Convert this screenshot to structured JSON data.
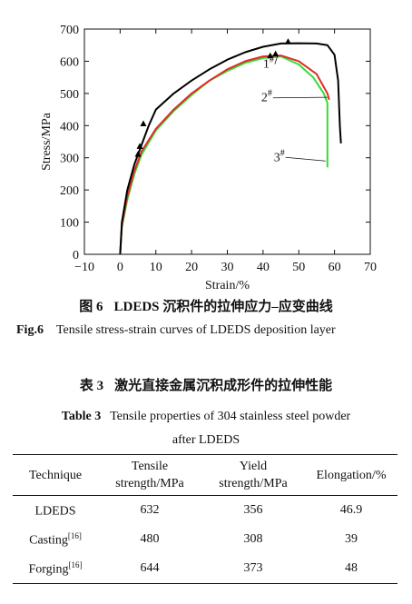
{
  "figure": {
    "caption_cn_number": "图 6",
    "caption_cn_text": "LDEDS 沉积件的拉伸应力–应变曲线",
    "caption_en_number": "Fig.6",
    "caption_en_text": "Tensile stress-strain curves of LDEDS deposition layer"
  },
  "chart_data": {
    "type": "line",
    "xlabel": "Strain/%",
    "ylabel": "Stress/MPa",
    "xlim": [
      -10,
      70
    ],
    "ylim": [
      0,
      700
    ],
    "xticks": [
      -10,
      0,
      10,
      20,
      30,
      40,
      50,
      60,
      70
    ],
    "yticks": [
      0,
      100,
      200,
      300,
      400,
      500,
      600,
      700
    ],
    "xtick_labels": [
      "−10",
      "0",
      "10",
      "20",
      "30",
      "40",
      "50",
      "60",
      "70"
    ],
    "series": [
      {
        "name": "1#",
        "color": "#000000",
        "x": [
          0,
          0.5,
          2,
          4,
          6,
          8,
          10,
          15,
          20,
          25,
          30,
          35,
          40,
          45,
          50,
          55,
          58,
          60,
          61,
          61.5,
          61.8
        ],
        "y": [
          0,
          100,
          200,
          280,
          340,
          400,
          450,
          500,
          540,
          575,
          605,
          628,
          645,
          655,
          656,
          655,
          650,
          620,
          540,
          400,
          345
        ]
      },
      {
        "name": "2#",
        "color": "#e32a2a",
        "x": [
          0,
          0.5,
          2,
          4,
          6,
          10,
          15,
          20,
          25,
          30,
          35,
          40,
          45,
          50,
          55,
          58,
          58.5
        ],
        "y": [
          0,
          90,
          180,
          260,
          320,
          390,
          450,
          500,
          540,
          575,
          600,
          615,
          618,
          600,
          560,
          500,
          480
        ]
      },
      {
        "name": "3#",
        "color": "#33dd33",
        "x": [
          0,
          0.5,
          2,
          4,
          6,
          10,
          15,
          20,
          25,
          30,
          35,
          40,
          45,
          50,
          54,
          57,
          58,
          58,
          58
        ],
        "y": [
          0,
          85,
          170,
          250,
          310,
          385,
          445,
          495,
          540,
          570,
          595,
          610,
          615,
          590,
          550,
          500,
          470,
          350,
          270
        ]
      }
    ],
    "markers": [
      {
        "x": 5,
        "y": 310
      },
      {
        "x": 5.5,
        "y": 335
      },
      {
        "x": 6.5,
        "y": 405
      },
      {
        "x": 42,
        "y": 616
      },
      {
        "x": 43.5,
        "y": 622
      },
      {
        "x": 47,
        "y": 660
      }
    ],
    "annotations": [
      {
        "label": "1",
        "sup": "#",
        "x": 40,
        "y": 580,
        "line_to": [
          44,
          615
        ]
      },
      {
        "label": "2",
        "sup": "#",
        "x": 39.5,
        "y": 475,
        "line_to": [
          58,
          488
        ]
      },
      {
        "label": "3",
        "sup": "#",
        "x": 43,
        "y": 290,
        "line_to": [
          57.5,
          290
        ]
      }
    ]
  },
  "table": {
    "title_cn_number": "表 3",
    "title_cn_text": "激光直接金属沉积成形件的拉伸性能",
    "title_en_number": "Table 3",
    "title_en_line1": "Tensile properties of 304 stainless steel powder",
    "title_en_line2": "after LDEDS",
    "headers": [
      "Technique",
      "Tensile",
      "strength/MPa",
      "Yield",
      "strength/MPa",
      "Elongation/%"
    ],
    "rows": [
      {
        "technique": "LDEDS",
        "ref": "",
        "tensile": "632",
        "yield": "356",
        "elongation": "46.9"
      },
      {
        "technique": "Casting",
        "ref": "[16]",
        "tensile": "480",
        "yield": "308",
        "elongation": "39"
      },
      {
        "technique": "Forging",
        "ref": "[16]",
        "tensile": "644",
        "yield": "373",
        "elongation": "48"
      }
    ]
  }
}
